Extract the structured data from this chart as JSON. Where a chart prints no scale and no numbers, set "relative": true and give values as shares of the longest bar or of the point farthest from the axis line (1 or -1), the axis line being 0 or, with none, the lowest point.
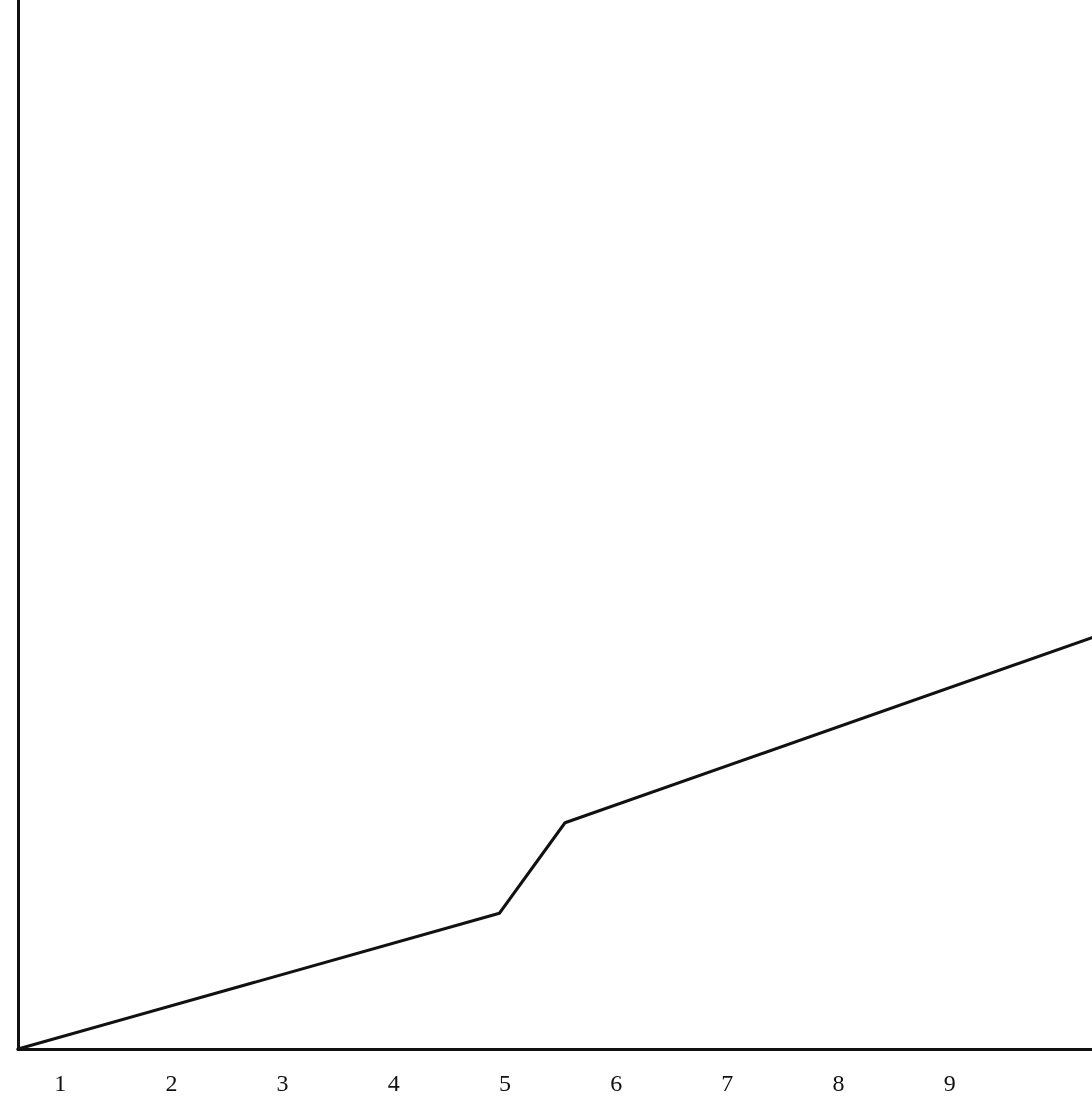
{
  "chart_data": {
    "type": "line",
    "relative": true,
    "x": [
      0.62,
      4.95,
      5.54,
      10.28
    ],
    "series": [
      {
        "color": "#111111",
        "values": [
          0,
          0.33,
          0.55,
          1
        ]
      }
    ],
    "xlim": [
      0.62,
      10.28
    ],
    "xticks": [
      1,
      2,
      3,
      4,
      5,
      6,
      7,
      8,
      9
    ],
    "marker": "none",
    "line_style": "solid"
  }
}
